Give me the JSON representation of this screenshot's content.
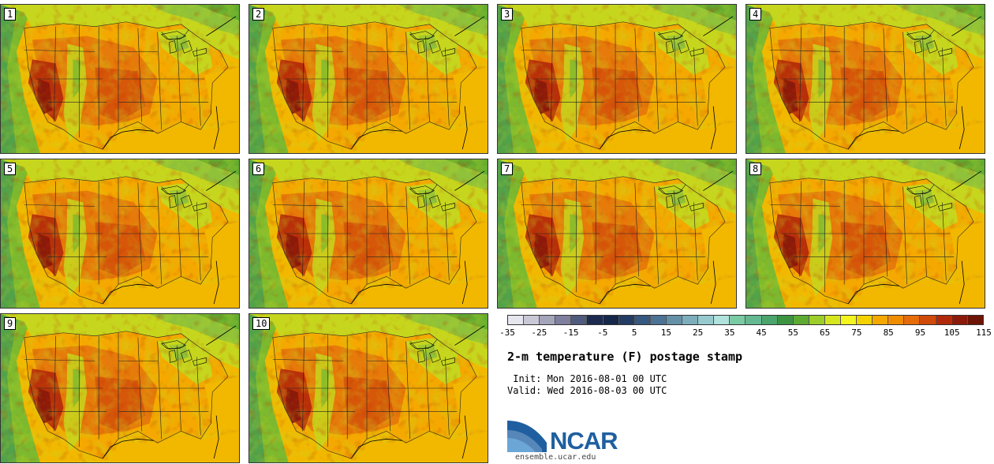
{
  "panels": [
    {
      "label": "1"
    },
    {
      "label": "2"
    },
    {
      "label": "3"
    },
    {
      "label": "4"
    },
    {
      "label": "5"
    },
    {
      "label": "6"
    },
    {
      "label": "7"
    },
    {
      "label": "8"
    },
    {
      "label": "9"
    },
    {
      "label": "10"
    }
  ],
  "colorbar": {
    "colors": [
      "#e6e6ee",
      "#c8c8d6",
      "#a4a4ba",
      "#7e7e9e",
      "#505a7c",
      "#1c2a50",
      "#15284a",
      "#243c64",
      "#36577e",
      "#4c7294",
      "#6490a8",
      "#7caebc",
      "#96cace",
      "#b0e2de",
      "#7acaa4",
      "#64b892",
      "#4ca56c",
      "#3c9440",
      "#5faa32",
      "#9ccd28",
      "#d6e61e",
      "#f4f41e",
      "#f4d200",
      "#f4a800",
      "#ef8c00",
      "#e66c0a",
      "#d04a0a",
      "#b02a0a",
      "#8c1a0a",
      "#6e1406"
    ],
    "ticks": [
      "-35",
      "-25",
      "-15",
      "-5",
      "5",
      "15",
      "25",
      "35",
      "45",
      "55",
      "65",
      "75",
      "85",
      "95",
      "105",
      "115"
    ]
  },
  "title": "2-m temperature (F) postage stamp",
  "init_text": " Init: Mon 2016-08-01 00 UTC",
  "valid_text": "Valid: Wed 2016-08-03 00 UTC",
  "logo": {
    "name": "NCAR",
    "url": "ensemble.ucar.edu"
  }
}
